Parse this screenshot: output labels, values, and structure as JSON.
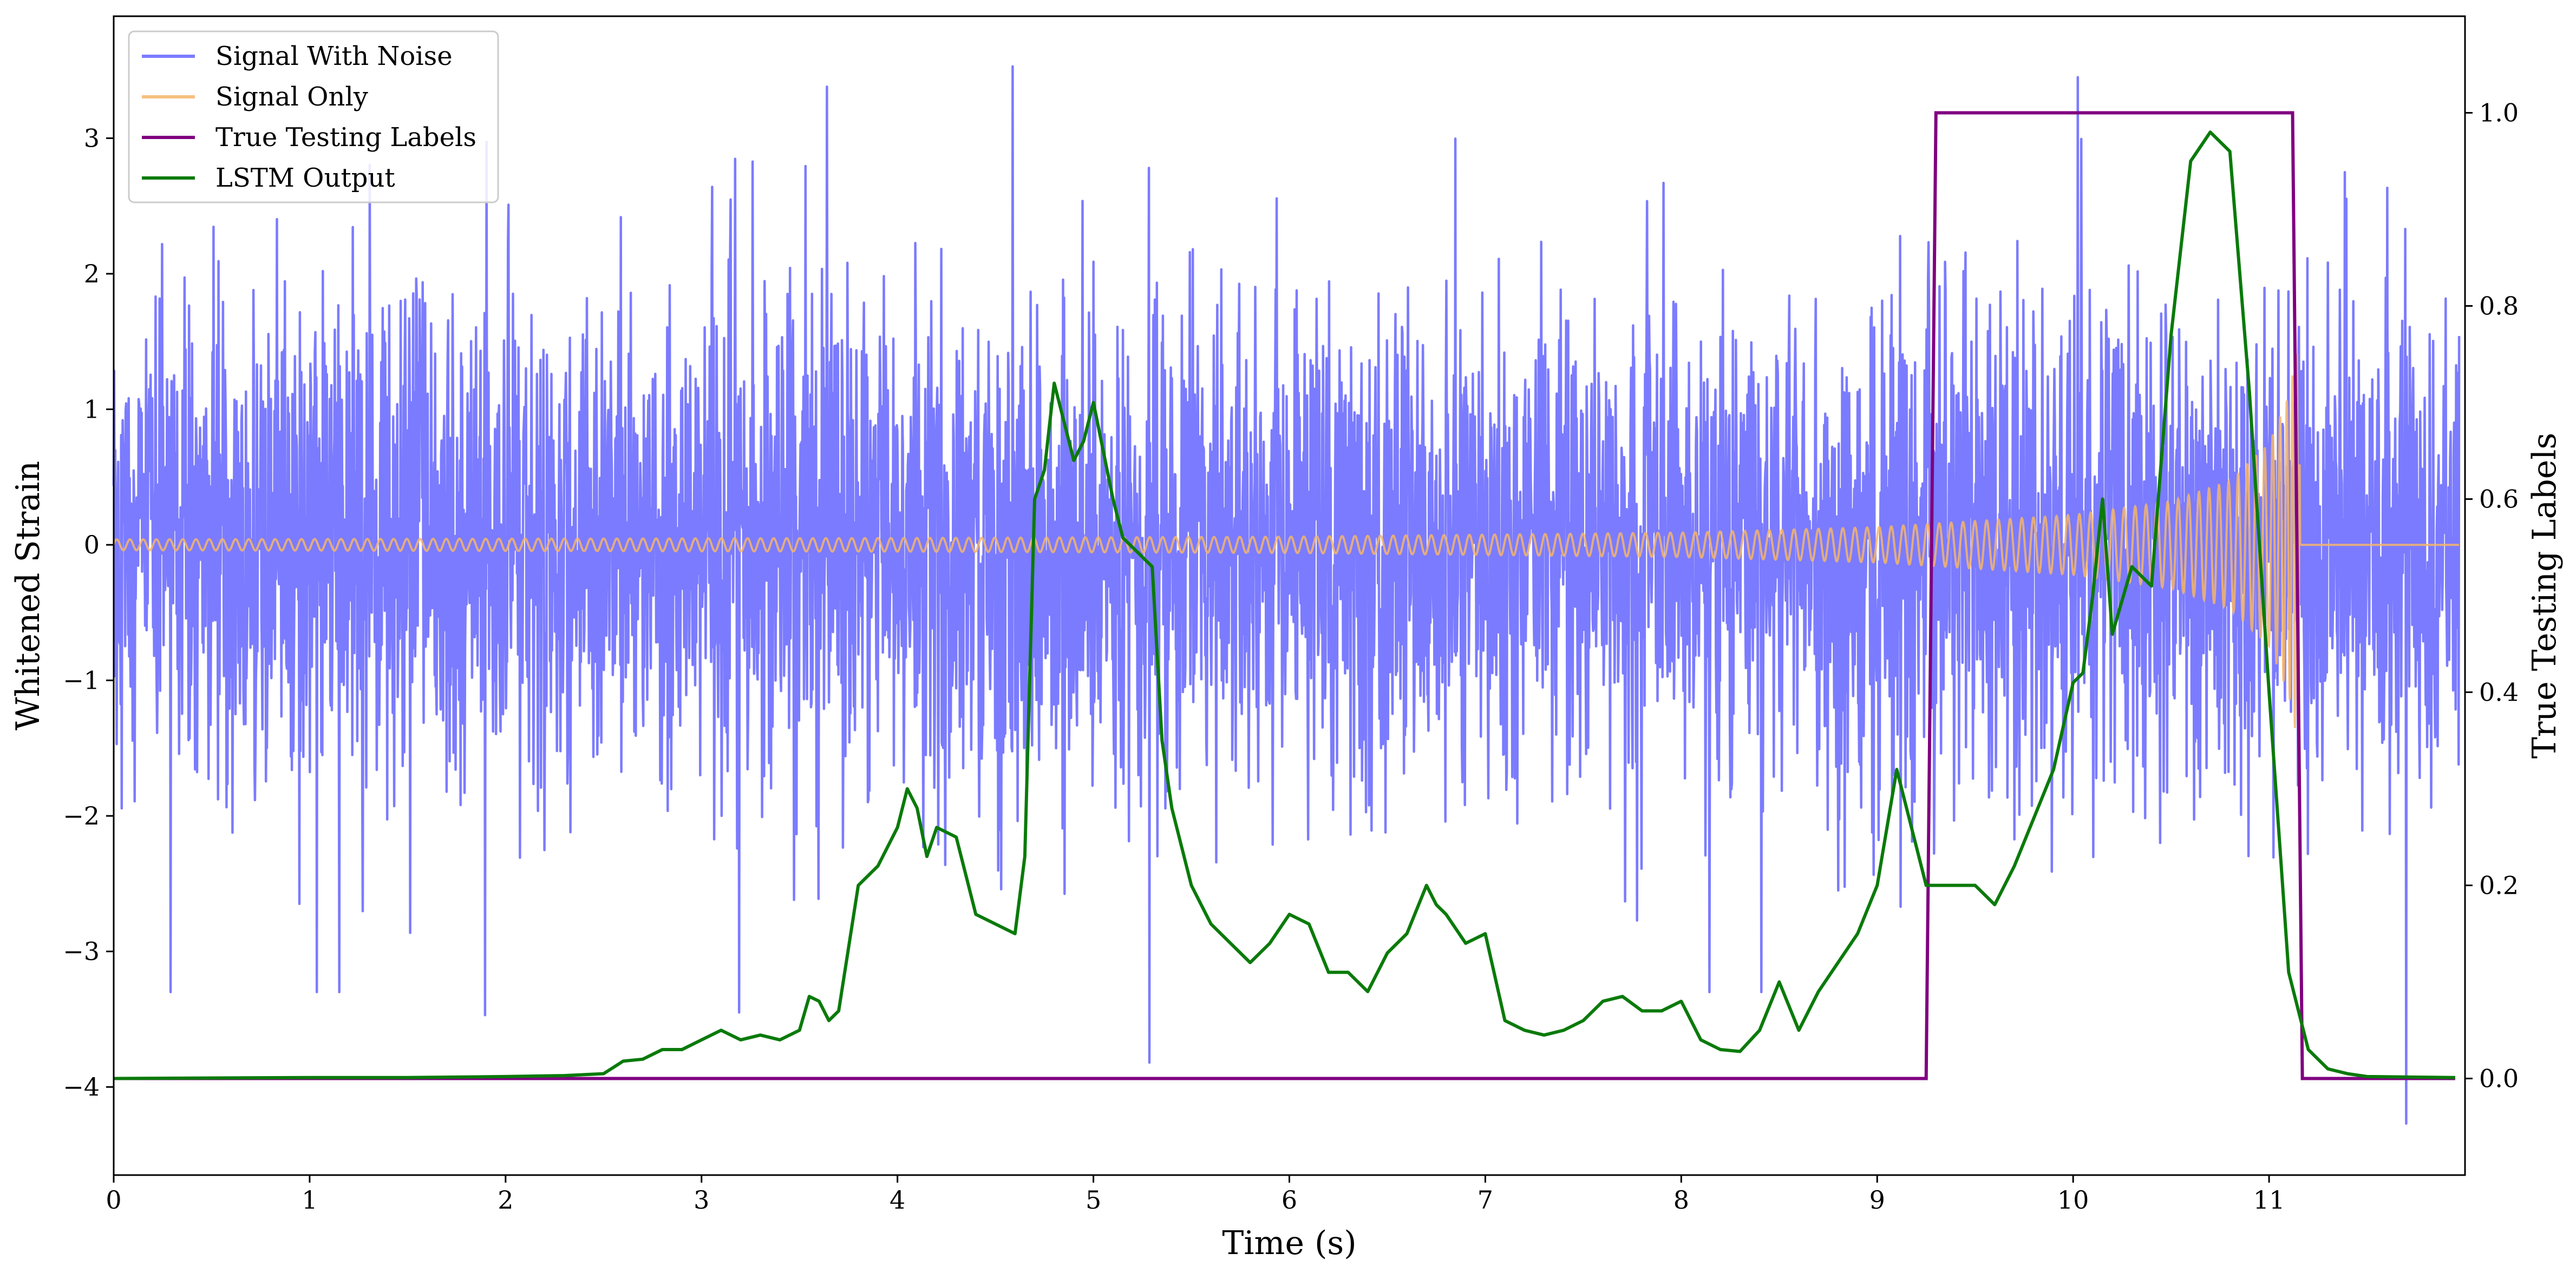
{
  "chart_data": {
    "type": "line",
    "title": "",
    "xlabel": "Time (s)",
    "ylabel": "Whitened Strain",
    "y2label": "True Testing Labels",
    "xlim": [
      0,
      12
    ],
    "ylim": [
      -4.65,
      3.9
    ],
    "y2lim": [
      -0.1,
      1.1
    ],
    "x_ticks": [
      0,
      1,
      2,
      3,
      4,
      5,
      6,
      7,
      8,
      9,
      10,
      11
    ],
    "y_ticks": [
      -4,
      -3,
      -2,
      -1,
      0,
      1,
      2,
      3
    ],
    "y2_ticks": [
      "0.0",
      "0.2",
      "0.4",
      "0.6",
      "0.8",
      "1.0"
    ],
    "legend_position": "upper-left",
    "grid": false,
    "series": [
      {
        "name": "Signal With Noise",
        "axis": "left",
        "color": "#7b7bff",
        "description": "dense noisy whitened strain, approximately standard normal around 0",
        "noise_sigma": 0.9,
        "notable_peaks": [
          [
            0.29,
            -3.3
          ],
          [
            1.04,
            -3.3
          ],
          [
            1.9,
            -3.47
          ],
          [
            3.2,
            -3.45
          ],
          [
            3.65,
            3.38
          ],
          [
            4.6,
            3.53
          ],
          [
            5.3,
            -3.82
          ],
          [
            10.05,
            3.45
          ],
          [
            11.73,
            -4.27
          ]
        ]
      },
      {
        "name": "Signal Only",
        "axis": "left",
        "color": "#f5b56b",
        "description": "chirp: small amplitude sinusoid growing toward merger near t=11.15 s then zero",
        "envelope": {
          "t": [
            0,
            2,
            4,
            6,
            8,
            9,
            10,
            10.5,
            10.8,
            11.0,
            11.1,
            11.15,
            11.16,
            12
          ],
          "amp": [
            0.04,
            0.045,
            0.05,
            0.06,
            0.09,
            0.13,
            0.22,
            0.32,
            0.47,
            0.75,
            1.1,
            1.5,
            0.0,
            0.0
          ]
        }
      },
      {
        "name": "True Testing Labels",
        "axis": "right",
        "color": "#800080",
        "x": [
          0,
          9.25,
          9.3,
          11.12,
          11.17,
          11.95
        ],
        "y": [
          0,
          0,
          1,
          1,
          0,
          0
        ]
      },
      {
        "name": "LSTM Output",
        "axis": "right",
        "color": "#0a7a0a",
        "x": [
          0,
          1.0,
          1.5,
          2.0,
          2.3,
          2.5,
          2.6,
          2.7,
          2.8,
          2.9,
          3.0,
          3.1,
          3.2,
          3.3,
          3.4,
          3.5,
          3.55,
          3.6,
          3.65,
          3.7,
          3.8,
          3.9,
          4.0,
          4.05,
          4.1,
          4.15,
          4.2,
          4.3,
          4.4,
          4.5,
          4.6,
          4.65,
          4.7,
          4.75,
          4.8,
          4.9,
          4.95,
          5.0,
          5.05,
          5.1,
          5.15,
          5.2,
          5.3,
          5.35,
          5.4,
          5.5,
          5.6,
          5.7,
          5.8,
          5.9,
          6.0,
          6.1,
          6.2,
          6.3,
          6.4,
          6.5,
          6.6,
          6.7,
          6.75,
          6.8,
          6.9,
          7.0,
          7.1,
          7.2,
          7.3,
          7.4,
          7.5,
          7.6,
          7.7,
          7.8,
          7.9,
          8.0,
          8.1,
          8.2,
          8.3,
          8.4,
          8.5,
          8.6,
          8.7,
          8.8,
          8.9,
          9.0,
          9.1,
          9.25,
          9.35,
          9.5,
          9.6,
          9.7,
          9.8,
          9.9,
          10.0,
          10.05,
          10.1,
          10.15,
          10.2,
          10.3,
          10.4,
          10.5,
          10.6,
          10.7,
          10.8,
          10.9,
          11.0,
          11.1,
          11.2,
          11.3,
          11.4,
          11.5,
          11.95
        ],
        "y": [
          0,
          0.001,
          0.001,
          0.002,
          0.003,
          0.005,
          0.018,
          0.02,
          0.03,
          0.03,
          0.04,
          0.05,
          0.04,
          0.045,
          0.04,
          0.05,
          0.085,
          0.08,
          0.06,
          0.07,
          0.2,
          0.22,
          0.26,
          0.3,
          0.28,
          0.23,
          0.26,
          0.25,
          0.17,
          0.16,
          0.15,
          0.23,
          0.6,
          0.63,
          0.72,
          0.64,
          0.66,
          0.7,
          0.65,
          0.6,
          0.56,
          0.55,
          0.53,
          0.35,
          0.28,
          0.2,
          0.16,
          0.14,
          0.12,
          0.14,
          0.17,
          0.16,
          0.11,
          0.11,
          0.09,
          0.13,
          0.15,
          0.2,
          0.18,
          0.17,
          0.14,
          0.15,
          0.06,
          0.05,
          0.045,
          0.05,
          0.06,
          0.08,
          0.085,
          0.07,
          0.07,
          0.08,
          0.04,
          0.03,
          0.028,
          0.05,
          0.1,
          0.05,
          0.09,
          0.12,
          0.15,
          0.2,
          0.32,
          0.2,
          0.2,
          0.2,
          0.18,
          0.22,
          0.27,
          0.32,
          0.41,
          0.42,
          0.5,
          0.6,
          0.46,
          0.53,
          0.51,
          0.77,
          0.95,
          0.98,
          0.96,
          0.71,
          0.4,
          0.11,
          0.03,
          0.01,
          0.005,
          0.002,
          0.001
        ]
      }
    ]
  }
}
